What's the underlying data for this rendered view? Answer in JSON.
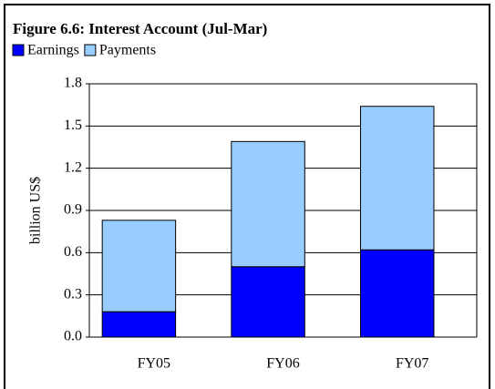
{
  "chart_data": {
    "type": "stacked_bar",
    "title": "Figure 6.6: Interest Account (Jul-Mar)",
    "y_label": "billion US$",
    "categories": [
      "FY05",
      "FY06",
      "FY07"
    ],
    "series": [
      {
        "name": "Earnings",
        "color": "#0000ff",
        "values": [
          0.18,
          0.5,
          0.62
        ]
      },
      {
        "name": "Payments",
        "color": "#99ccff",
        "values": [
          0.65,
          0.89,
          1.02
        ]
      }
    ],
    "ylim": [
      0,
      1.8
    ],
    "yticks": [
      {
        "value": 0,
        "label": "0.0"
      },
      0.3,
      0.6,
      0.9,
      1.2,
      1.5,
      1.8
    ],
    "grid": true
  }
}
